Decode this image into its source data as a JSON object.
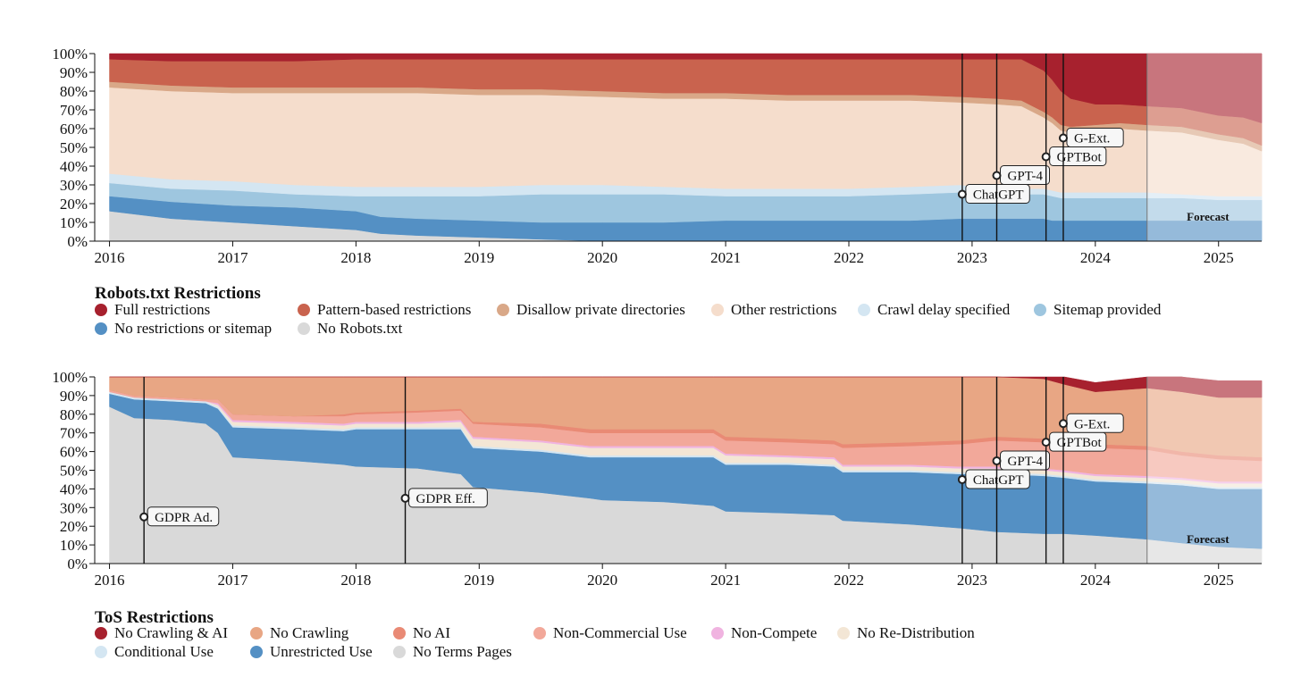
{
  "chart_data": [
    {
      "type": "area",
      "title": "Robots.txt Restrictions",
      "x_ticks": [
        "2016",
        "2017",
        "2018",
        "2019",
        "2020",
        "2021",
        "2022",
        "2023",
        "2024",
        "2025"
      ],
      "y_ticks": [
        "0%",
        "10%",
        "20%",
        "30%",
        "40%",
        "50%",
        "60%",
        "70%",
        "80%",
        "90%",
        "100%"
      ],
      "ylim": [
        0,
        100
      ],
      "forecast_label": "Forecast",
      "forecast_start": 2024.42,
      "x": [
        2016.0,
        2016.5,
        2017.0,
        2017.5,
        2018.0,
        2018.2,
        2018.5,
        2019.0,
        2019.5,
        2020.0,
        2020.5,
        2021.0,
        2021.5,
        2022.0,
        2022.5,
        2022.9,
        2023.2,
        2023.4,
        2023.58,
        2023.65,
        2023.72,
        2023.8,
        2024.0,
        2024.2,
        2024.42,
        2024.7,
        2025.0,
        2025.2,
        2025.35
      ],
      "series": [
        {
          "name": "No Robots.txt",
          "color": "#d9d9d9",
          "values": [
            16,
            12,
            10,
            8,
            6,
            4,
            3,
            2,
            1,
            0,
            0,
            0,
            0,
            0,
            0,
            0,
            0,
            0,
            0,
            0,
            0,
            0,
            0,
            0,
            0,
            0,
            0,
            0,
            0
          ]
        },
        {
          "name": "No restrictions or sitemap",
          "color": "#5490c4",
          "values": [
            8,
            9,
            9,
            10,
            10,
            9,
            9,
            9,
            9,
            10,
            10,
            11,
            11,
            11,
            11,
            12,
            12,
            12,
            12,
            11,
            11,
            11,
            11,
            11,
            11,
            11,
            11,
            11,
            11
          ]
        },
        {
          "name": "Sitemap provided",
          "color": "#9ec6df",
          "values": [
            7,
            7,
            8,
            7,
            8,
            11,
            12,
            13,
            15,
            15,
            15,
            13,
            13,
            13,
            14,
            14,
            13,
            13,
            13,
            13,
            12,
            12,
            12,
            12,
            12,
            12,
            11,
            11,
            11
          ]
        },
        {
          "name": "Crawl delay specified",
          "color": "#d4e6f2",
          "values": [
            5,
            5,
            5,
            5,
            5,
            5,
            5,
            5,
            5,
            5,
            4,
            4,
            4,
            4,
            4,
            4,
            3,
            3,
            3,
            3,
            3,
            3,
            3,
            3,
            3,
            2,
            2,
            2,
            2
          ]
        },
        {
          "name": "Other restrictions",
          "color": "#f5ddcc",
          "values": [
            46,
            47,
            47,
            49,
            50,
            50,
            50,
            49,
            48,
            47,
            47,
            48,
            47,
            47,
            46,
            44,
            45,
            44,
            38,
            36,
            33,
            32,
            33,
            34,
            33,
            33,
            30,
            28,
            24
          ]
        },
        {
          "name": "Disallow private directories",
          "color": "#d9a888",
          "values": [
            3,
            3,
            3,
            3,
            3,
            3,
            3,
            3,
            3,
            3,
            3,
            3,
            3,
            3,
            3,
            3,
            3,
            3,
            3,
            3,
            3,
            3,
            3,
            3,
            3,
            3,
            3,
            3,
            3
          ]
        },
        {
          "name": "Pattern-based restrictions",
          "color": "#c9634e",
          "values": [
            12,
            13,
            14,
            14,
            15,
            15,
            15,
            16,
            16,
            17,
            18,
            18,
            19,
            19,
            19,
            20,
            21,
            22,
            22,
            20,
            18,
            15,
            11,
            10,
            10,
            10,
            10,
            11,
            12
          ]
        },
        {
          "name": "Full restrictions",
          "color": "#a7212e",
          "values": [
            3,
            4,
            4,
            4,
            3,
            3,
            3,
            3,
            3,
            3,
            3,
            3,
            3,
            3,
            3,
            3,
            3,
            3,
            9,
            14,
            20,
            24,
            27,
            27,
            28,
            29,
            33,
            34,
            37
          ]
        }
      ],
      "events": [
        {
          "x": 2022.92,
          "y": 25,
          "label": "ChatGPT"
        },
        {
          "x": 2023.2,
          "y": 35,
          "label": "GPT-4"
        },
        {
          "x": 2023.6,
          "y": 45,
          "label": "GPTBot"
        },
        {
          "x": 2023.74,
          "y": 55,
          "label": "G-Ext."
        }
      ],
      "legend": [
        "Full restrictions",
        "Pattern-based restrictions",
        "Disallow private directories",
        "Other restrictions",
        "Crawl delay specified",
        "Sitemap provided",
        "No restrictions or sitemap",
        "No Robots.txt"
      ]
    },
    {
      "type": "area",
      "title": "ToS Restrictions",
      "x_ticks": [
        "2016",
        "2017",
        "2018",
        "2019",
        "2020",
        "2021",
        "2022",
        "2023",
        "2024",
        "2025"
      ],
      "y_ticks": [
        "0%",
        "10%",
        "20%",
        "30%",
        "40%",
        "50%",
        "60%",
        "70%",
        "80%",
        "90%",
        "100%"
      ],
      "ylim": [
        0,
        100
      ],
      "forecast_label": "Forecast",
      "forecast_start": 2024.42,
      "x": [
        2016.0,
        2016.2,
        2016.5,
        2016.78,
        2016.88,
        2017.0,
        2017.5,
        2017.9,
        2018.0,
        2018.5,
        2018.85,
        2018.95,
        2019.5,
        2019.9,
        2020.0,
        2020.5,
        2020.9,
        2021.0,
        2021.5,
        2021.88,
        2021.95,
        2022.5,
        2022.9,
        2023.2,
        2023.58,
        2023.75,
        2024.0,
        2024.42,
        2024.7,
        2025.0,
        2025.35
      ],
      "series": [
        {
          "name": "No Terms Pages",
          "color": "#d9d9d9",
          "values": [
            84,
            78,
            77,
            75,
            70,
            57,
            55,
            53,
            52,
            51,
            48,
            41,
            38,
            35,
            34,
            33,
            31,
            28,
            27,
            26,
            23,
            21,
            19,
            17,
            16,
            16,
            15,
            13,
            11,
            9,
            8
          ]
        },
        {
          "name": "Unrestricted Use",
          "color": "#5490c4",
          "values": [
            7,
            10,
            10,
            11,
            13,
            16,
            17,
            18,
            20,
            21,
            24,
            21,
            22,
            22,
            23,
            24,
            26,
            25,
            26,
            26,
            26,
            28,
            29,
            31,
            31,
            30,
            29,
            30,
            31,
            31,
            32
          ]
        },
        {
          "name": "Conditional Use",
          "color": "#d4e6f2",
          "values": [
            1,
            1,
            1,
            1,
            1,
            1,
            1,
            1,
            1,
            1,
            1,
            1,
            1,
            1,
            1,
            1,
            1,
            1,
            1,
            1,
            1,
            1,
            1,
            1,
            1,
            1,
            1,
            1,
            1,
            1,
            1
          ]
        },
        {
          "name": "No Re-Distribution",
          "color": "#f3e6d5",
          "values": [
            0,
            0,
            0,
            0,
            1,
            2,
            2,
            2,
            2,
            2,
            3,
            4,
            4,
            4,
            4,
            4,
            4,
            4,
            3,
            3,
            2,
            2,
            2,
            2,
            2,
            2,
            2,
            2,
            2,
            2,
            2
          ]
        },
        {
          "name": "Non-Compete",
          "color": "#f0b3e0",
          "values": [
            0,
            0,
            0,
            0,
            1,
            1,
            1,
            1,
            1,
            1,
            1,
            1,
            1,
            1,
            1,
            1,
            1,
            1,
            1,
            1,
            1,
            1,
            1,
            1,
            1,
            1,
            1,
            1,
            1,
            1,
            1
          ]
        },
        {
          "name": "Non-Commercial Use",
          "color": "#f2a89a",
          "values": [
            1,
            1,
            1,
            1,
            2,
            3,
            3,
            4,
            4,
            5,
            5,
            7,
            7,
            7,
            7,
            7,
            7,
            7,
            7,
            7,
            9,
            10,
            12,
            14,
            14,
            14,
            14,
            14,
            12,
            12,
            11
          ]
        },
        {
          "name": "No AI",
          "color": "#e98a75",
          "values": [
            0,
            0,
            0,
            0,
            0,
            0,
            0,
            1,
            1,
            1,
            1,
            1,
            2,
            2,
            2,
            2,
            2,
            2,
            2,
            2,
            2,
            2,
            2,
            2,
            2,
            2,
            2,
            2,
            2,
            2,
            2
          ]
        },
        {
          "name": "No Crawling",
          "color": "#e8a684",
          "values": [
            7,
            10,
            11,
            12,
            12,
            20,
            21,
            20,
            19,
            19,
            17,
            24,
            25,
            28,
            28,
            28,
            28,
            32,
            33,
            34,
            36,
            36,
            34,
            33,
            32,
            30,
            28,
            31,
            32,
            31,
            32
          ]
        },
        {
          "name": "No Crawling & AI",
          "color": "#a7212e",
          "values": [
            0,
            0,
            0,
            0,
            0,
            0,
            0,
            0,
            0,
            0,
            0,
            0,
            0,
            0,
            0,
            0,
            0,
            0,
            0,
            0,
            0,
            0,
            0,
            0,
            1,
            4,
            5,
            6,
            8,
            9,
            9
          ]
        }
      ],
      "events": [
        {
          "x": 2016.28,
          "y": 25,
          "label": "GDPR Ad."
        },
        {
          "x": 2018.4,
          "y": 35,
          "label": "GDPR Eff."
        },
        {
          "x": 2022.92,
          "y": 45,
          "label": "ChatGPT"
        },
        {
          "x": 2023.2,
          "y": 55,
          "label": "GPT-4"
        },
        {
          "x": 2023.6,
          "y": 65,
          "label": "GPTBot"
        },
        {
          "x": 2023.74,
          "y": 75,
          "label": "G-Ext."
        }
      ],
      "legend": [
        "No Crawling & AI",
        "No Crawling",
        "No AI",
        "Non-Commercial Use",
        "Non-Compete",
        "No Re-Distribution",
        "Conditional Use",
        "Unrestricted Use",
        "No Terms Pages"
      ]
    }
  ]
}
